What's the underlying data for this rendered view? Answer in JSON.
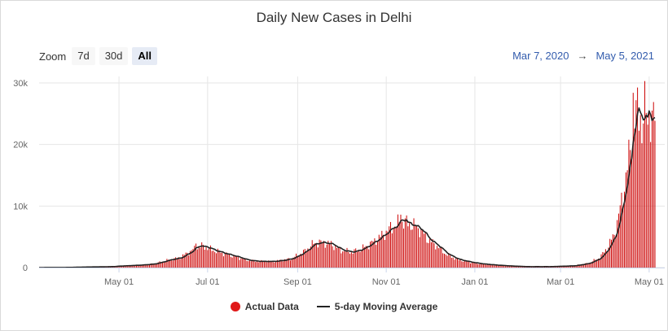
{
  "chart_data": {
    "type": "bar",
    "title": "Daily New Cases in Delhi",
    "zoom": {
      "label": "Zoom",
      "buttons": [
        "7d",
        "30d",
        "All"
      ],
      "active": "All"
    },
    "range": {
      "from": "Mar 7, 2020",
      "arrow": "→",
      "to": "May 5, 2021"
    },
    "x_start": "2020-03-07",
    "x_end": "2021-05-05",
    "x_ticks": [
      {
        "date": "2020-05-01",
        "label": "May 01"
      },
      {
        "date": "2020-07-01",
        "label": "Jul 01"
      },
      {
        "date": "2020-09-01",
        "label": "Sep 01"
      },
      {
        "date": "2020-11-01",
        "label": "Nov 01"
      },
      {
        "date": "2021-01-01",
        "label": "Jan 01"
      },
      {
        "date": "2021-03-01",
        "label": "Mar 01"
      },
      {
        "date": "2021-05-01",
        "label": "May 01"
      }
    ],
    "y_ticks": [
      {
        "value": 0,
        "label": "0"
      },
      {
        "value": 10000,
        "label": "10k"
      },
      {
        "value": 20000,
        "label": "20k"
      },
      {
        "value": 30000,
        "label": "30k"
      }
    ],
    "ylim": [
      0,
      30000
    ],
    "grid": true,
    "legend_position": "bottom-center",
    "series": [
      {
        "name": "Actual Data",
        "type": "bar",
        "color": "#cc0000"
      },
      {
        "name": "5-day Moving Average",
        "type": "line",
        "color": "#222222"
      }
    ],
    "approx_points": [
      [
        "2020-03-07",
        0
      ],
      [
        "2020-03-25",
        20
      ],
      [
        "2020-04-10",
        100
      ],
      [
        "2020-04-25",
        150
      ],
      [
        "2020-05-01",
        250
      ],
      [
        "2020-05-15",
        400
      ],
      [
        "2020-05-25",
        600
      ],
      [
        "2020-06-05",
        1300
      ],
      [
        "2020-06-12",
        1600
      ],
      [
        "2020-06-18",
        2500
      ],
      [
        "2020-06-24",
        3300
      ],
      [
        "2020-06-28",
        3500
      ],
      [
        "2020-07-05",
        2800
      ],
      [
        "2020-07-12",
        2300
      ],
      [
        "2020-07-20",
        1800
      ],
      [
        "2020-07-28",
        1200
      ],
      [
        "2020-08-05",
        1000
      ],
      [
        "2020-08-15",
        1000
      ],
      [
        "2020-08-22",
        1200
      ],
      [
        "2020-08-28",
        1500
      ],
      [
        "2020-09-05",
        2500
      ],
      [
        "2020-09-12",
        3900
      ],
      [
        "2020-09-18",
        4100
      ],
      [
        "2020-09-24",
        3800
      ],
      [
        "2020-10-01",
        2800
      ],
      [
        "2020-10-08",
        2500
      ],
      [
        "2020-10-15",
        3000
      ],
      [
        "2020-10-22",
        4000
      ],
      [
        "2020-10-28",
        5000
      ],
      [
        "2020-11-03",
        6200
      ],
      [
        "2020-11-08",
        7000
      ],
      [
        "2020-11-12",
        7500
      ],
      [
        "2020-11-18",
        7000
      ],
      [
        "2020-11-24",
        6300
      ],
      [
        "2020-11-30",
        4500
      ],
      [
        "2020-12-06",
        3500
      ],
      [
        "2020-12-12",
        2200
      ],
      [
        "2020-12-20",
        1300
      ],
      [
        "2020-12-28",
        900
      ],
      [
        "2021-01-05",
        600
      ],
      [
        "2021-01-15",
        400
      ],
      [
        "2021-01-25",
        250
      ],
      [
        "2021-02-05",
        150
      ],
      [
        "2021-02-20",
        150
      ],
      [
        "2021-03-01",
        220
      ],
      [
        "2021-03-10",
        300
      ],
      [
        "2021-03-20",
        700
      ],
      [
        "2021-03-28",
        1600
      ],
      [
        "2021-04-03",
        3500
      ],
      [
        "2021-04-08",
        6000
      ],
      [
        "2021-04-13",
        12000
      ],
      [
        "2021-04-17",
        17500
      ],
      [
        "2021-04-21",
        24500
      ],
      [
        "2021-04-25",
        25500
      ],
      [
        "2021-04-28",
        25000
      ],
      [
        "2021-05-01",
        24000
      ],
      [
        "2021-05-03",
        23500
      ],
      [
        "2021-05-05",
        24500
      ]
    ],
    "bar_overrides": [
      [
        "2021-04-20",
        28400
      ],
      [
        "2021-04-26",
        20200
      ],
      [
        "2021-05-01",
        25200
      ],
      [
        "2021-05-02",
        20400
      ],
      [
        "2021-05-04",
        26900
      ],
      [
        "2020-11-11",
        8600
      ],
      [
        "2020-06-23",
        3900
      ]
    ]
  }
}
